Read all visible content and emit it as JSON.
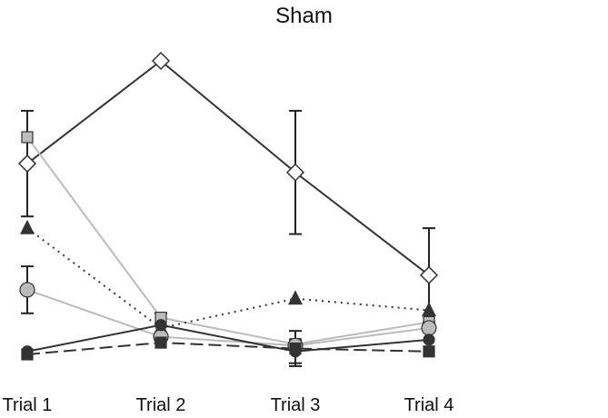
{
  "chart_data": {
    "type": "line",
    "title": "Sham",
    "xlabel": "",
    "ylabel": "",
    "categories": [
      "Trial 1",
      "Trial 2",
      "Trial 3",
      "Trial 4"
    ],
    "ylim": [
      0,
      100
    ],
    "grid": false,
    "legend": "none",
    "series": [
      {
        "marker": "diamond",
        "fill": "#ffffff",
        "line_color": "#333333",
        "dash": "solid",
        "values": [
          65,
          100,
          62,
          27
        ],
        "err": [
          18,
          0.5,
          21,
          16
        ]
      },
      {
        "marker": "square",
        "fill": "#bbbbbb",
        "line_color": "#bbbbbb",
        "dash": "solid",
        "values": [
          74,
          12.5,
          3.5,
          11
        ],
        "err": [
          0,
          0,
          0,
          0
        ]
      },
      {
        "marker": "triangle",
        "fill": "#333333",
        "line_color": "#333333",
        "dash": "dotted",
        "values": [
          43,
          9,
          19,
          15
        ],
        "err": [
          0,
          0,
          0,
          0
        ]
      },
      {
        "marker": "circle",
        "fill": "#bbbbbb",
        "line_color": "#bbbbbb",
        "dash": "solid",
        "values": [
          22,
          6,
          3,
          9
        ],
        "err": [
          8,
          0,
          0,
          0
        ]
      },
      {
        "marker": "circle",
        "fill": "#333333",
        "line_color": "#333333",
        "dash": "solid",
        "values": [
          1,
          10,
          1,
          5
        ],
        "err": [
          0,
          4,
          4,
          0
        ]
      },
      {
        "marker": "square",
        "fill": "#333333",
        "line_color": "#333333",
        "dash": "dashed",
        "values": [
          0,
          4,
          2,
          1
        ],
        "err": [
          0,
          0,
          6,
          0
        ]
      }
    ]
  }
}
